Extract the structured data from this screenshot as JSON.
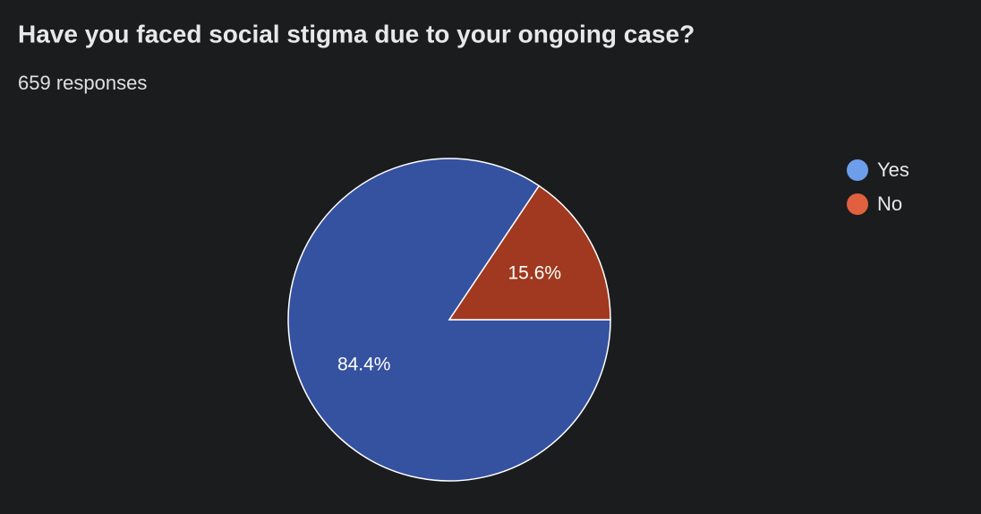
{
  "chart_data": {
    "type": "pie",
    "title": "Have you faced social stigma due to your ongoing case?",
    "subtitle": "659 responses",
    "categories": [
      "Yes",
      "No"
    ],
    "values": [
      84.4,
      15.6
    ],
    "value_labels": [
      "84.4%",
      "15.6%"
    ],
    "colors": [
      "#3552a0",
      "#a0391f"
    ],
    "legend_colors": [
      "#6d9eeb",
      "#e0603f"
    ],
    "legend": "right"
  }
}
